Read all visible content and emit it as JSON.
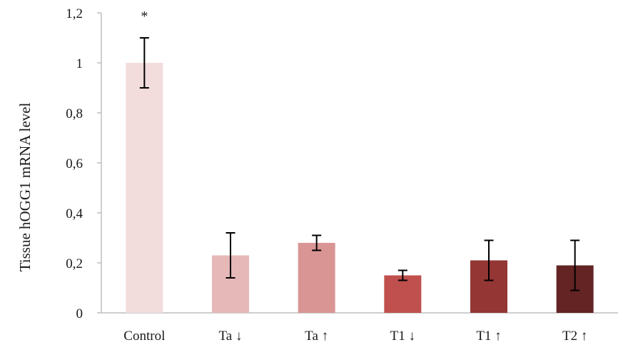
{
  "chart_data": {
    "type": "bar",
    "title": "",
    "xlabel": "",
    "ylabel": "Tissue hOGG1 mRNA level",
    "ylim": [
      0,
      1.2
    ],
    "y_ticks": [
      0,
      0.2,
      0.4,
      0.6,
      0.8,
      1,
      1.2
    ],
    "y_tick_labels": [
      "0",
      "0,2",
      "0,4",
      "0,6",
      "0,8",
      "1",
      "1,2"
    ],
    "grid": false,
    "categories": [
      "Control",
      "Ta ↓",
      "Ta ↑",
      "T1 ↓",
      "T1 ↑",
      "T2 ↑"
    ],
    "values": [
      1.0,
      0.23,
      0.28,
      0.15,
      0.21,
      0.19
    ],
    "errors": [
      0.1,
      0.09,
      0.03,
      0.02,
      0.08,
      0.1
    ],
    "colors": [
      "#f2dcdc",
      "#e6b8b8",
      "#d99594",
      "#c0504d",
      "#943634",
      "#632423"
    ],
    "error_bar_color": "#000000",
    "annotations": [
      {
        "category_index": 0,
        "text": "*"
      }
    ]
  }
}
